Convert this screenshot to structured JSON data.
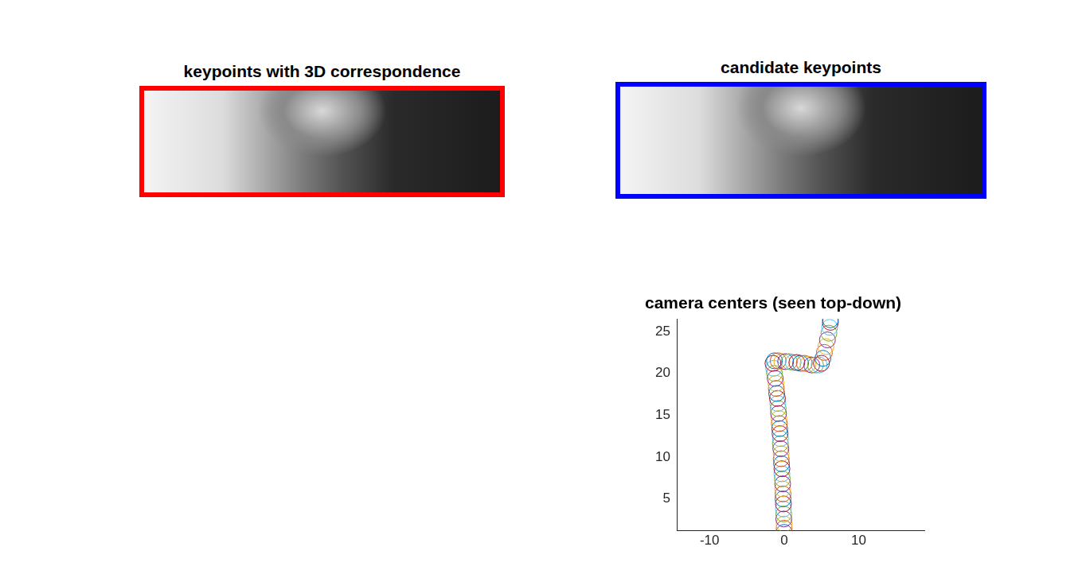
{
  "chart_data": [
    {
      "type": "image",
      "title": "keypoints with 3D correspondence",
      "color": "#ff0000"
    },
    {
      "type": "image",
      "title": "candidate keypoints",
      "color": "#0000ff"
    },
    {
      "type": "scatter",
      "title": "camera centers (seen top-down)",
      "marker": "circle",
      "grid": false,
      "legend": false,
      "x": [
        0.0,
        0.0,
        0.0,
        -0.05,
        -0.05,
        -0.1,
        -0.1,
        -0.15,
        -0.15,
        -0.2,
        -0.2,
        -0.25,
        -0.3,
        -0.3,
        -0.35,
        -0.4,
        -0.4,
        -0.45,
        -0.5,
        -0.5,
        -0.55,
        -0.6,
        -0.65,
        -0.7,
        -0.75,
        -0.8,
        -0.85,
        -0.9,
        -1.0,
        -1.05,
        -1.1,
        -1.2,
        -1.3,
        -1.4,
        -1.5,
        -1.3,
        -0.8,
        -0.3,
        0.2,
        0.7,
        1.2,
        1.7,
        2.2,
        2.7,
        3.2,
        3.7,
        4.2,
        4.7,
        5.0,
        5.2,
        5.4,
        5.6,
        5.8,
        6.0,
        6.1,
        6.2,
        6.2
      ],
      "y": [
        1.0,
        1.5,
        2.0,
        2.6,
        3.2,
        3.8,
        4.4,
        5.0,
        5.6,
        6.2,
        6.8,
        7.4,
        8.0,
        8.6,
        9.2,
        9.8,
        10.4,
        11.0,
        11.6,
        12.2,
        12.8,
        13.4,
        14.0,
        14.6,
        15.2,
        15.8,
        16.4,
        17.0,
        17.6,
        18.2,
        18.8,
        19.4,
        20.0,
        20.6,
        21.2,
        21.5,
        21.5,
        21.4,
        21.4,
        21.4,
        21.3,
        21.3,
        21.2,
        21.2,
        21.1,
        21.0,
        21.0,
        21.0,
        21.2,
        21.8,
        22.5,
        23.2,
        24.0,
        24.8,
        25.5,
        26.1,
        26.4
      ],
      "colors": [
        "#0072bd",
        "#d95319",
        "#edb120",
        "#7e2f8e",
        "#77ac30",
        "#4dbeee",
        "#a2142f",
        "#0072bd",
        "#d95319",
        "#edb120",
        "#7e2f8e",
        "#77ac30",
        "#4dbeee",
        "#a2142f",
        "#0072bd",
        "#d95319",
        "#edb120",
        "#7e2f8e",
        "#77ac30",
        "#4dbeee",
        "#a2142f",
        "#0072bd",
        "#d95319",
        "#edb120",
        "#7e2f8e",
        "#77ac30",
        "#4dbeee",
        "#a2142f",
        "#0072bd",
        "#d95319",
        "#edb120",
        "#7e2f8e",
        "#77ac30",
        "#4dbeee",
        "#a2142f",
        "#0072bd",
        "#d95319",
        "#edb120",
        "#7e2f8e",
        "#77ac30",
        "#4dbeee",
        "#a2142f",
        "#0072bd",
        "#d95319",
        "#edb120",
        "#7e2f8e",
        "#77ac30",
        "#4dbeee",
        "#a2142f",
        "#0072bd",
        "#d95319",
        "#edb120",
        "#7e2f8e",
        "#77ac30",
        "#4dbeee",
        "#a2142f",
        "#0072bd"
      ],
      "xlim": [
        -14.4,
        18.8
      ],
      "ylim": [
        1.2,
        26.5
      ],
      "xticks": [
        -10,
        0,
        10
      ],
      "yticks": [
        5,
        10,
        15,
        20,
        25
      ]
    }
  ]
}
